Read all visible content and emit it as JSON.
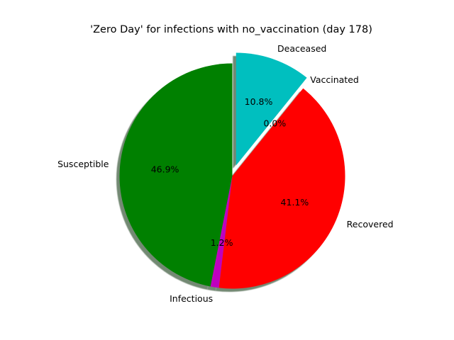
{
  "chart_data": {
    "type": "pie",
    "title": "'Zero Day' for infections with no_vaccination (day 178)",
    "categories": [
      "Susceptible",
      "Infectious",
      "Recovered",
      "Vaccinated",
      "Deaceased"
    ],
    "values": [
      46.9,
      1.2,
      41.1,
      0.0,
      10.8
    ],
    "percent_labels": [
      "46.9%",
      "1.2%",
      "41.1%",
      "0.0%",
      "10.8%"
    ],
    "colors": [
      "#008000",
      "#bf00bf",
      "#ff0000",
      "#0000ff",
      "#00bfbf"
    ],
    "explode": [
      0,
      0,
      0,
      0,
      0.1
    ],
    "start_angle_deg": 90,
    "direction": "counterclockwise",
    "shadow": true,
    "legend": "none"
  }
}
